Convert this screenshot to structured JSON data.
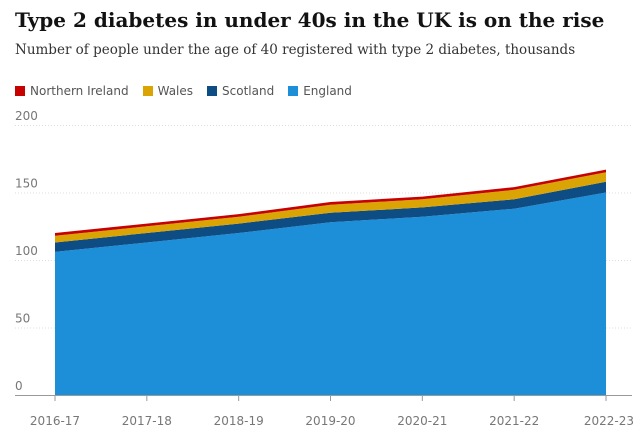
{
  "title": "Type 2 diabetes in under 40s in the UK is on the rise",
  "subtitle": "Number of people under the age of 40 registered with type 2 diabetes, thousands",
  "chart_data": {
    "type": "area",
    "stacked": true,
    "title": "Type 2 diabetes in under 40s in the UK is on the rise",
    "subtitle": "Number of people under the age of 40 registered with type 2 diabetes, thousands",
    "xlabel": "",
    "ylabel": "",
    "categories": [
      "2016-17",
      "2017-18",
      "2018-19",
      "2019-20",
      "2020-21",
      "2021-22",
      "2022-23"
    ],
    "yticks": [
      "0",
      "50",
      "100",
      "150",
      "200"
    ],
    "ylim": [
      0,
      200
    ],
    "grid": true,
    "legend_position": "top-left",
    "series": [
      {
        "name": "England",
        "color": "#1c8fd8",
        "values": [
          106,
          113,
          120,
          128,
          132,
          138,
          150
        ]
      },
      {
        "name": "Scotland",
        "color": "#0e4c84",
        "values": [
          7,
          7,
          7,
          7,
          7,
          7,
          8
        ]
      },
      {
        "name": "Wales",
        "color": "#d9a404",
        "values": [
          5,
          5,
          5,
          6,
          6,
          7,
          7
        ]
      },
      {
        "name": "Northern Ireland",
        "color": "#c70000",
        "values": [
          2,
          2,
          2,
          2,
          2,
          2,
          2
        ]
      }
    ]
  }
}
